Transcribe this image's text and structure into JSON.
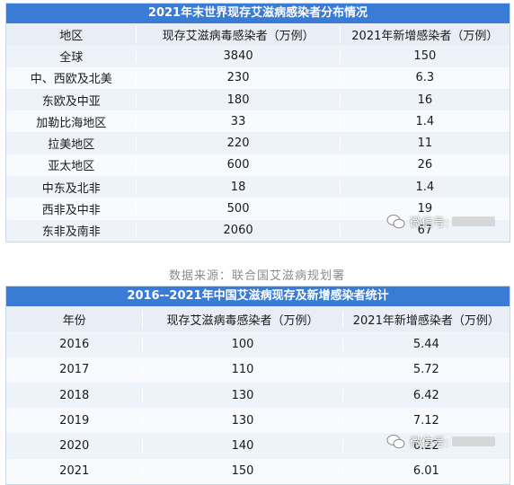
{
  "table1": {
    "title": "2021年末世界现存艾滋病感染者分布情况",
    "headers": [
      "地区",
      "现存艾滋病毒感染者（万例）",
      "2021年新增感染者（万例）"
    ],
    "rows": [
      [
        "全球",
        "3840",
        "150"
      ],
      [
        "中、西欧及北美",
        "230",
        "6.3"
      ],
      [
        "东欧及中亚",
        "180",
        "16"
      ],
      [
        "加勒比海地区",
        "33",
        "1.4"
      ],
      [
        "拉美地区",
        "220",
        "11"
      ],
      [
        "亚太地区",
        "600",
        "26"
      ],
      [
        "中东及北非",
        "18",
        "1.4"
      ],
      [
        "西非及中非",
        "500",
        "19"
      ],
      [
        "东非及南非",
        "2060",
        "67"
      ]
    ]
  },
  "source": "数据来源：联合国艾滋病规划署",
  "table2": {
    "title": "2016--2021年中国艾滋病现存及新增感染者统计",
    "headers": [
      "年份",
      "现存艾滋病毒感染者（万例）",
      "2021年新增感染者（万例）"
    ],
    "rows": [
      [
        "2016",
        "100",
        "5.44"
      ],
      [
        "2017",
        "110",
        "5.72"
      ],
      [
        "2018",
        "130",
        "6.42"
      ],
      [
        "2019",
        "130",
        "7.12"
      ],
      [
        "2020",
        "140",
        "6.22"
      ],
      [
        "2021",
        "150",
        "6.01"
      ]
    ]
  },
  "watermark": {
    "label": "微信号:",
    "icon": "wechat-icon"
  },
  "colors": {
    "title_bg": "#3a7bd5",
    "header_bg": "#e9eef6",
    "row_odd": "#eef3f9",
    "row_even": "#f8fafd"
  }
}
